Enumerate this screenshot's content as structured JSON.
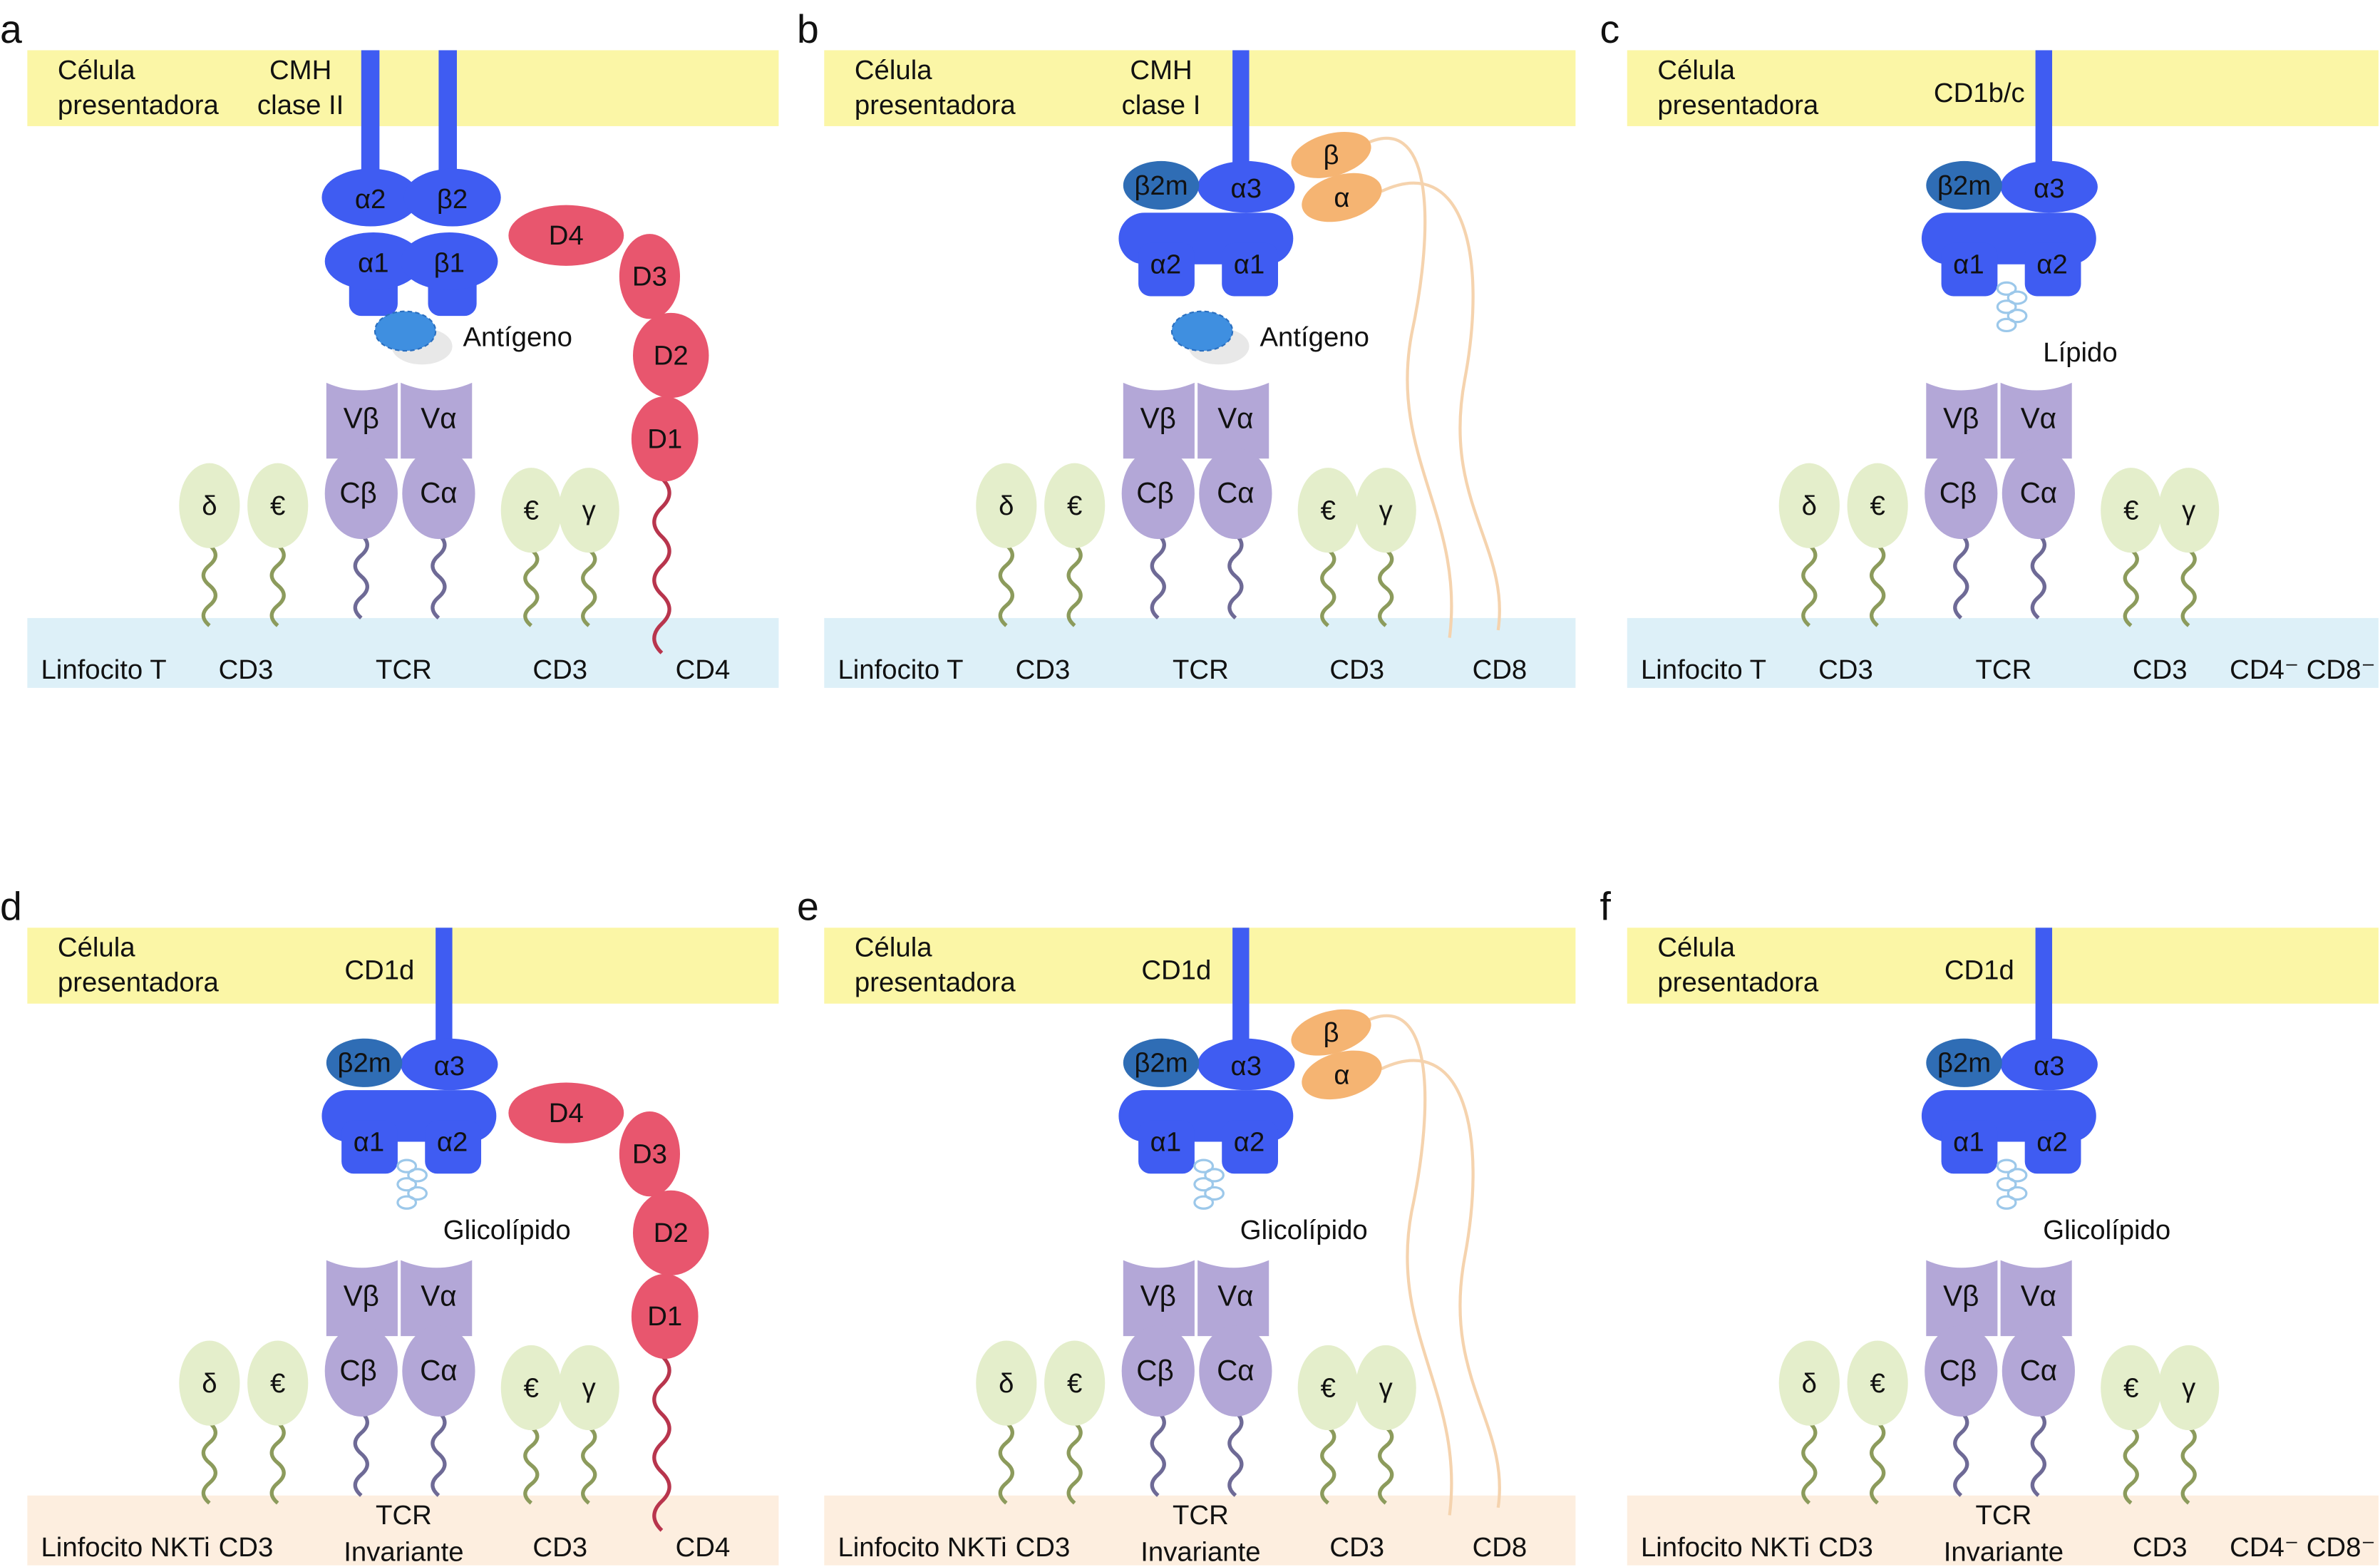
{
  "colors": {
    "presenting_cell": "#fbf6a6",
    "t_cell_membrane": "#ddf0f8",
    "nkt_cell_membrane": "#fdeedf",
    "mhc": "#3f5cf2",
    "b2m": "#2f6db5",
    "tcr": "#b3a7d7",
    "cd3": "#e4eecb",
    "cd4": "#e8566e",
    "cd8": "#f5b472",
    "ligand": "#3f8fe0"
  },
  "panels": [
    {
      "letter": "a",
      "mhc_type": "class2",
      "coreceptor": "CD4",
      "membrane": "t",
      "presenting": [
        "Célula",
        "presentadora"
      ],
      "molecule": [
        "CMH",
        "clase II"
      ],
      "chains": [
        "α2",
        "β2",
        "α1",
        "β1"
      ],
      "ligand": "Antígeno",
      "ligand_type": "antigen",
      "tcr": [
        "Vβ",
        "Vα",
        "Cβ",
        "Cα"
      ],
      "cd3": [
        "δ",
        "€",
        "€",
        "γ"
      ],
      "cd4_domains": [
        "D4",
        "D3",
        "D2",
        "D1"
      ],
      "bottom": {
        "cell": "Linfocito T",
        "cd3_left": "CD3",
        "tcr": [
          "TCR"
        ],
        "cd3_right": "CD3",
        "coreceptor": "CD4"
      }
    },
    {
      "letter": "b",
      "mhc_type": "class1",
      "coreceptor": "CD8",
      "membrane": "t",
      "presenting": [
        "Célula",
        "presentadora"
      ],
      "molecule": [
        "CMH",
        "clase I"
      ],
      "chains": [
        "β2m",
        "α3",
        "α2",
        "α1"
      ],
      "cd8_chains": [
        "β",
        "α"
      ],
      "ligand": "Antígeno",
      "ligand_type": "antigen",
      "tcr": [
        "Vβ",
        "Vα",
        "Cβ",
        "Cα"
      ],
      "cd3": [
        "δ",
        "€",
        "€",
        "γ"
      ],
      "bottom": {
        "cell": "Linfocito T",
        "cd3_left": "CD3",
        "tcr": [
          "TCR"
        ],
        "cd3_right": "CD3",
        "coreceptor": "CD8"
      }
    },
    {
      "letter": "c",
      "mhc_type": "cd1",
      "coreceptor": "none",
      "membrane": "t",
      "presenting": [
        "Célula",
        "presentadora"
      ],
      "molecule": [
        "CD1b/c"
      ],
      "chains": [
        "β2m",
        "α3",
        "α1",
        "α2"
      ],
      "ligand": "Lípido",
      "ligand_type": "lipid",
      "tcr": [
        "Vβ",
        "Vα",
        "Cβ",
        "Cα"
      ],
      "cd3": [
        "δ",
        "€",
        "€",
        "γ"
      ],
      "bottom": {
        "cell": "Linfocito T",
        "cd3_left": "CD3",
        "tcr": [
          "TCR"
        ],
        "cd3_right": "CD3",
        "coreceptor": "CD4⁻ CD8⁻"
      }
    },
    {
      "letter": "d",
      "mhc_type": "cd1",
      "coreceptor": "CD4",
      "membrane": "nkt",
      "presenting": [
        "Célula",
        "presentadora"
      ],
      "molecule": [
        "CD1d"
      ],
      "chains": [
        "β2m",
        "α3",
        "α1",
        "α2"
      ],
      "ligand": "Glicolípido",
      "ligand_type": "lipid",
      "tcr": [
        "Vβ",
        "Vα",
        "Cβ",
        "Cα"
      ],
      "cd3": [
        "δ",
        "€",
        "€",
        "γ"
      ],
      "cd4_domains": [
        "D4",
        "D3",
        "D2",
        "D1"
      ],
      "bottom": {
        "cell": "Linfocito NKTi",
        "cd3_left": "CD3",
        "tcr": [
          "TCR",
          "Invariante"
        ],
        "cd3_right": "CD3",
        "coreceptor": "CD4"
      }
    },
    {
      "letter": "e",
      "mhc_type": "cd1",
      "coreceptor": "CD8",
      "membrane": "nkt",
      "presenting": [
        "Célula",
        "presentadora"
      ],
      "molecule": [
        "CD1d"
      ],
      "chains": [
        "β2m",
        "α3",
        "α1",
        "α2"
      ],
      "cd8_chains": [
        "β",
        "α"
      ],
      "ligand": "Glicolípido",
      "ligand_type": "lipid",
      "tcr": [
        "Vβ",
        "Vα",
        "Cβ",
        "Cα"
      ],
      "cd3": [
        "δ",
        "€",
        "€",
        "γ"
      ],
      "bottom": {
        "cell": "Linfocito NKTi",
        "cd3_left": "CD3",
        "tcr": [
          "TCR",
          "Invariante"
        ],
        "cd3_right": "CD3",
        "coreceptor": "CD8"
      }
    },
    {
      "letter": "f",
      "mhc_type": "cd1",
      "coreceptor": "none",
      "membrane": "nkt",
      "presenting": [
        "Célula",
        "presentadora"
      ],
      "molecule": [
        "CD1d"
      ],
      "chains": [
        "β2m",
        "α3",
        "α1",
        "α2"
      ],
      "ligand": "Glicolípido",
      "ligand_type": "lipid",
      "tcr": [
        "Vβ",
        "Vα",
        "Cβ",
        "Cα"
      ],
      "cd3": [
        "δ",
        "€",
        "€",
        "γ"
      ],
      "bottom": {
        "cell": "Linfocito NKTi",
        "cd3_left": "CD3",
        "tcr": [
          "TCR",
          "Invariante"
        ],
        "cd3_right": "CD3",
        "coreceptor": "CD4⁻ CD8⁻"
      }
    }
  ]
}
